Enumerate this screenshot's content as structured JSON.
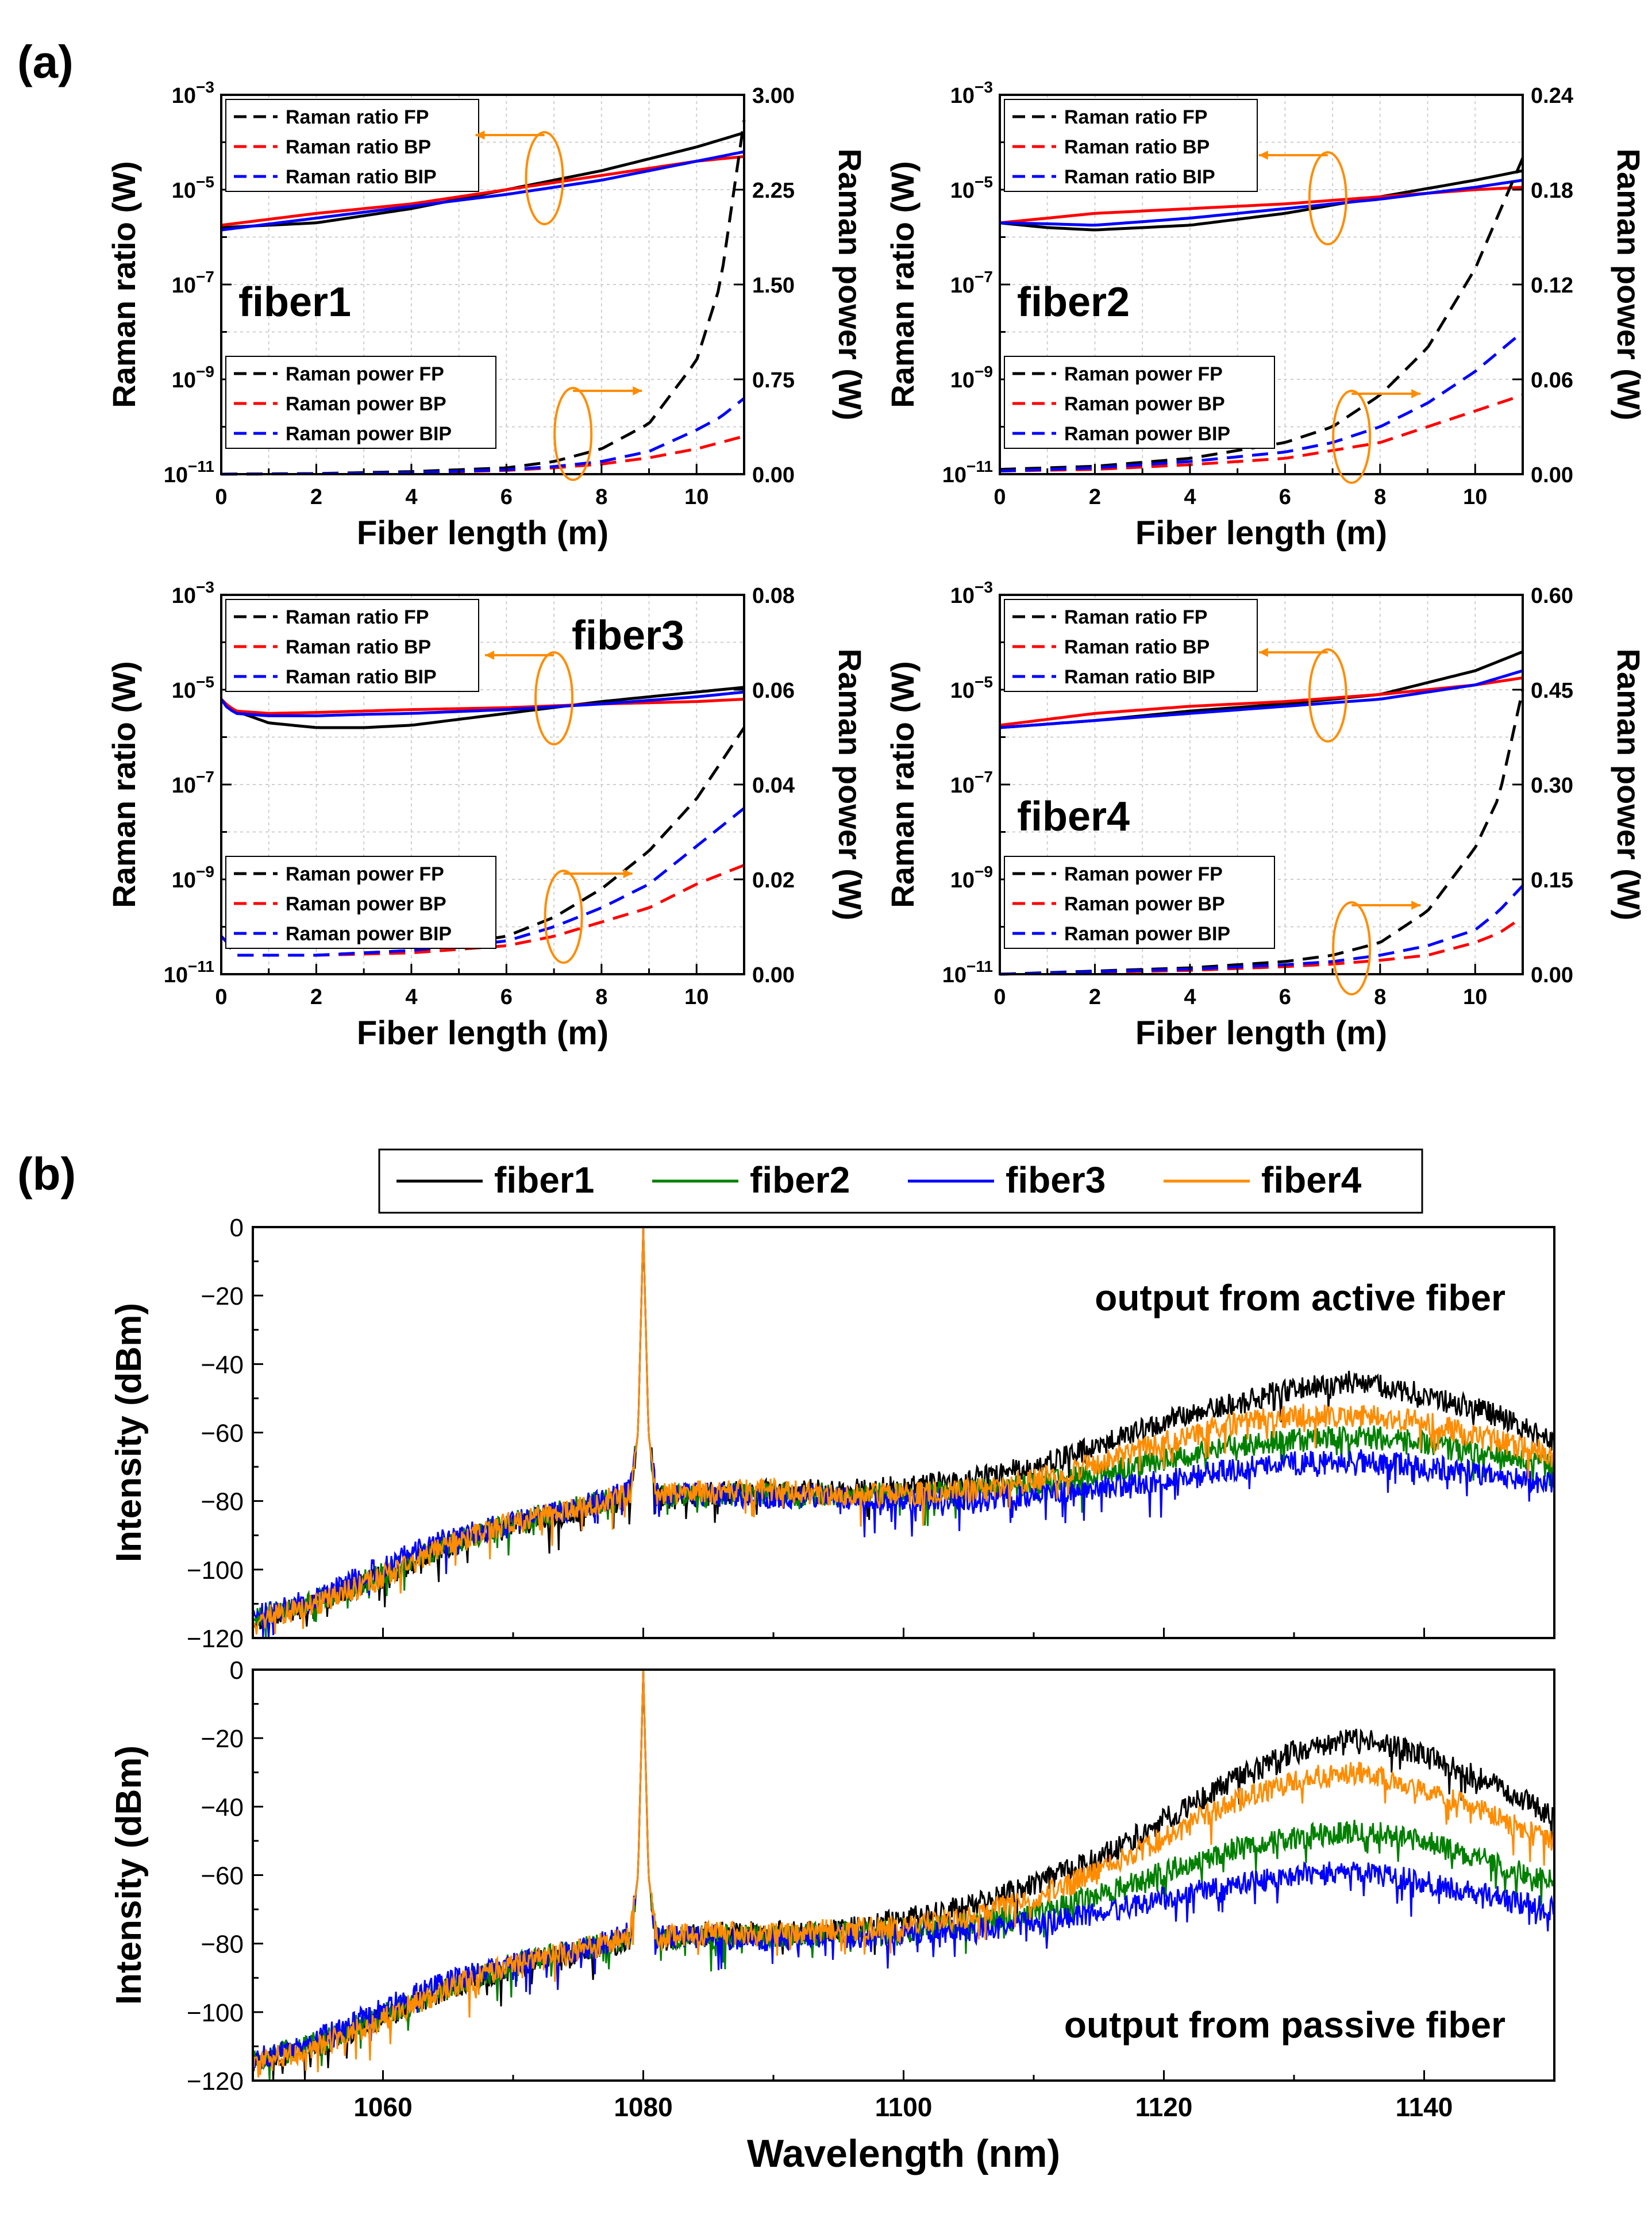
{
  "figure": {
    "part_a_label": "(a)",
    "part_b_label": "(b)"
  },
  "colors": {
    "black": "#000000",
    "red": "#ff0000",
    "blue": "#0000ff",
    "green": "#008000",
    "orange": "#ff8c00",
    "grid": "#cfcfcf"
  },
  "chart_data": [
    {
      "id": "fiber1",
      "type": "line",
      "panel_label": "fiber1",
      "xlabel": "Fiber length (m)",
      "ylabel_left": "Raman ratio (W)",
      "ylabel_right": "Raman power (W)",
      "xlim": [
        0,
        11
      ],
      "xticks": [
        "0",
        "2",
        "4",
        "6",
        "8",
        "10"
      ],
      "ylim_left_log10": [
        -11,
        -3
      ],
      "yticks_left_exp": [
        "-11",
        "-9",
        "-7",
        "-5",
        "-3"
      ],
      "ylim_right": [
        0,
        3.0
      ],
      "yticks_right": [
        "0.00",
        "0.75",
        "1.50",
        "2.25",
        "3.00"
      ],
      "legend_ratio": [
        "Raman ratio FP",
        "Raman ratio BP",
        "Raman ratio BIP"
      ],
      "legend_power": [
        "Raman power FP",
        "Raman power BP",
        "Raman power BIP"
      ],
      "ratio_log10": {
        "x": [
          0,
          2,
          4,
          6,
          8,
          10,
          11
        ],
        "FP": [
          -5.8,
          -5.7,
          -5.4,
          -5.0,
          -4.6,
          -4.1,
          -3.8
        ],
        "BP": [
          -5.75,
          -5.5,
          -5.3,
          -5.0,
          -4.7,
          -4.4,
          -4.3
        ],
        "BIP": [
          -5.85,
          -5.6,
          -5.35,
          -5.1,
          -4.8,
          -4.4,
          -4.2
        ]
      },
      "power": {
        "x": [
          0,
          2,
          4,
          6,
          7,
          8,
          9,
          10,
          10.5,
          11
        ],
        "FP": [
          0.0,
          0.005,
          0.02,
          0.05,
          0.1,
          0.2,
          0.4,
          0.9,
          1.5,
          2.8
        ],
        "BP": [
          0.0,
          0.003,
          0.01,
          0.03,
          0.05,
          0.08,
          0.13,
          0.2,
          0.25,
          0.3
        ],
        "BIP": [
          0.0,
          0.004,
          0.012,
          0.035,
          0.06,
          0.1,
          0.18,
          0.35,
          0.45,
          0.6
        ]
      }
    },
    {
      "id": "fiber2",
      "type": "line",
      "panel_label": "fiber2",
      "xlabel": "Fiber length (m)",
      "ylabel_left": "Raman ratio (W)",
      "ylabel_right": "Raman power (W)",
      "xlim": [
        0,
        11
      ],
      "xticks": [
        "0",
        "2",
        "4",
        "6",
        "8",
        "10"
      ],
      "ylim_left_log10": [
        -11,
        -3
      ],
      "yticks_left_exp": [
        "-11",
        "-9",
        "-7",
        "-5",
        "-3"
      ],
      "ylim_right": [
        0,
        0.24
      ],
      "yticks_right": [
        "0.00",
        "0.06",
        "0.12",
        "0.18",
        "0.24"
      ],
      "legend_ratio": [
        "Raman ratio FP",
        "Raman ratio BP",
        "Raman ratio BIP"
      ],
      "legend_power": [
        "Raman power FP",
        "Raman power BP",
        "Raman power BIP"
      ],
      "ratio_log10": {
        "x": [
          0,
          1,
          2,
          4,
          6,
          8,
          10,
          11
        ],
        "FP": [
          -5.7,
          -5.8,
          -5.85,
          -5.75,
          -5.5,
          -5.15,
          -4.8,
          -4.6
        ],
        "BP": [
          -5.7,
          -5.6,
          -5.5,
          -5.4,
          -5.3,
          -5.15,
          -5.0,
          -4.95
        ],
        "BIP": [
          -5.7,
          -5.72,
          -5.75,
          -5.6,
          -5.4,
          -5.2,
          -4.95,
          -4.8
        ]
      },
      "power": {
        "x": [
          0,
          2,
          4,
          6,
          7,
          8,
          9,
          10,
          11
        ],
        "FP": [
          0.003,
          0.005,
          0.01,
          0.02,
          0.03,
          0.05,
          0.08,
          0.13,
          0.2
        ],
        "BP": [
          0.002,
          0.003,
          0.006,
          0.01,
          0.015,
          0.02,
          0.03,
          0.04,
          0.05
        ],
        "BIP": [
          0.002,
          0.004,
          0.008,
          0.014,
          0.02,
          0.03,
          0.045,
          0.065,
          0.09
        ]
      }
    },
    {
      "id": "fiber3",
      "type": "line",
      "panel_label": "fiber3",
      "xlabel": "Fiber length (m)",
      "ylabel_left": "Raman ratio (W)",
      "ylabel_right": "Raman power (W)",
      "xlim": [
        0,
        11
      ],
      "xticks": [
        "0",
        "2",
        "4",
        "6",
        "8",
        "10"
      ],
      "ylim_left_log10": [
        -11,
        -3
      ],
      "yticks_left_exp": [
        "-11",
        "-9",
        "-7",
        "-5",
        "-3"
      ],
      "ylim_right": [
        0,
        0.08
      ],
      "yticks_right": [
        "0.00",
        "0.02",
        "0.04",
        "0.06",
        "0.08"
      ],
      "legend_ratio": [
        "Raman ratio FP",
        "Raman ratio BP",
        "Raman ratio BIP"
      ],
      "legend_power": [
        "Raman power FP",
        "Raman power BP",
        "Raman power BIP"
      ],
      "ratio_log10": {
        "x": [
          0,
          0.1,
          0.3,
          1,
          2,
          3,
          4,
          6,
          8,
          10,
          11
        ],
        "FP": [
          -5.2,
          -5.3,
          -5.45,
          -5.7,
          -5.8,
          -5.8,
          -5.75,
          -5.5,
          -5.25,
          -5.05,
          -4.95
        ],
        "BP": [
          -5.2,
          -5.3,
          -5.45,
          -5.5,
          -5.48,
          -5.45,
          -5.42,
          -5.38,
          -5.3,
          -5.25,
          -5.2
        ],
        "BIP": [
          -5.2,
          -5.35,
          -5.5,
          -5.55,
          -5.55,
          -5.52,
          -5.5,
          -5.42,
          -5.3,
          -5.15,
          -5.05
        ]
      },
      "power": {
        "x": [
          0,
          0.1,
          0.3,
          1,
          2,
          4,
          6,
          7,
          8,
          9,
          10,
          11
        ],
        "FP": [
          0.008,
          0.007,
          0.004,
          0.004,
          0.004,
          0.005,
          0.008,
          0.012,
          0.018,
          0.026,
          0.037,
          0.052
        ],
        "BP": [
          0.008,
          0.007,
          0.004,
          0.004,
          0.004,
          0.0045,
          0.006,
          0.008,
          0.011,
          0.014,
          0.019,
          0.023
        ],
        "BIP": [
          0.008,
          0.007,
          0.004,
          0.004,
          0.004,
          0.005,
          0.007,
          0.01,
          0.014,
          0.019,
          0.027,
          0.035
        ]
      }
    },
    {
      "id": "fiber4",
      "type": "line",
      "panel_label": "fiber4",
      "xlabel": "Fiber length (m)",
      "ylabel_left": "Raman ratio (W)",
      "ylabel_right": "Raman power (W)",
      "xlim": [
        0,
        11
      ],
      "xticks": [
        "0",
        "2",
        "4",
        "6",
        "8",
        "10"
      ],
      "ylim_left_log10": [
        -11,
        -3
      ],
      "yticks_left_exp": [
        "-11",
        "-9",
        "-7",
        "-5",
        "-3"
      ],
      "ylim_right": [
        0,
        0.6
      ],
      "yticks_right": [
        "0.00",
        "0.15",
        "0.30",
        "0.45",
        "0.60"
      ],
      "legend_ratio": [
        "Raman ratio FP",
        "Raman ratio BP",
        "Raman ratio BIP"
      ],
      "legend_power": [
        "Raman power FP",
        "Raman power BP",
        "Raman power BIP"
      ],
      "ratio_log10": {
        "x": [
          0,
          2,
          4,
          6,
          8,
          10,
          11
        ],
        "FP": [
          -5.8,
          -5.65,
          -5.45,
          -5.3,
          -5.1,
          -4.6,
          -4.2
        ],
        "BP": [
          -5.75,
          -5.5,
          -5.35,
          -5.25,
          -5.1,
          -4.9,
          -4.75
        ],
        "BIP": [
          -5.8,
          -5.65,
          -5.5,
          -5.35,
          -5.2,
          -4.9,
          -4.6
        ]
      },
      "power": {
        "x": [
          0,
          2,
          4,
          6,
          7,
          8,
          9,
          10,
          10.5,
          11
        ],
        "FP": [
          0.0,
          0.005,
          0.01,
          0.02,
          0.03,
          0.05,
          0.1,
          0.2,
          0.28,
          0.45
        ],
        "BP": [
          0.0,
          0.003,
          0.006,
          0.012,
          0.016,
          0.022,
          0.03,
          0.05,
          0.065,
          0.09
        ],
        "BIP": [
          0.0,
          0.004,
          0.008,
          0.015,
          0.02,
          0.03,
          0.045,
          0.07,
          0.1,
          0.14
        ]
      }
    },
    {
      "id": "spectra",
      "type": "line",
      "xlabel": "Wavelength (nm)",
      "ylabel": "Intensity (dBm)",
      "xlim": [
        1050,
        1150
      ],
      "xticks": [
        "1060",
        "1080",
        "1100",
        "1120",
        "1140"
      ],
      "ylim": [
        -120,
        0
      ],
      "yticks": [
        "0",
        "-20",
        "-40",
        "-60",
        "-80",
        "-100",
        "-120"
      ],
      "legend": [
        "fiber1",
        "fiber2",
        "fiber3",
        "fiber4"
      ],
      "panels": [
        {
          "annotation": "output from active fiber",
          "x": [
            1050,
            1055,
            1060,
            1065,
            1070,
            1075,
            1079,
            1079.6,
            1080,
            1080.4,
            1081,
            1085,
            1090,
            1095,
            1100,
            1105,
            1110,
            1115,
            1120,
            1125,
            1130,
            1135,
            1140,
            1145,
            1150
          ],
          "series": {
            "fiber1": [
              -115,
              -110,
              -102,
              -93,
              -87,
              -83,
              -79,
              -60,
              0,
              -60,
              -79,
              -78,
              -77,
              -77,
              -76,
              -74,
              -70,
              -64,
              -57,
              -52,
              -47,
              -45,
              -49,
              -54,
              -63
            ],
            "fiber2": [
              -114,
              -109,
              -101,
              -93,
              -86,
              -82,
              -78,
              -60,
              0,
              -60,
              -79,
              -78,
              -78,
              -78,
              -78,
              -77,
              -75,
              -72,
              -68,
              -64,
              -62,
              -61,
              -63,
              -67,
              -70
            ],
            "fiber3": [
              -114,
              -108,
              -99,
              -91,
              -86,
              -82,
              -77,
              -60,
              0,
              -60,
              -78,
              -78,
              -79,
              -79,
              -80,
              -79,
              -78,
              -76,
              -74,
              -71,
              -69,
              -68,
              -70,
              -72,
              -75
            ],
            "fiber4": [
              -115,
              -110,
              -102,
              -93,
              -86,
              -82,
              -78,
              -60,
              0,
              -60,
              -78,
              -77,
              -77,
              -78,
              -78,
              -77,
              -74,
              -69,
              -63,
              -58,
              -55,
              -55,
              -57,
              -62,
              -66
            ]
          }
        },
        {
          "annotation": "output from passive fiber",
          "x": [
            1050,
            1055,
            1060,
            1065,
            1070,
            1075,
            1079,
            1079.6,
            1080,
            1080.4,
            1081,
            1085,
            1090,
            1095,
            1100,
            1105,
            1110,
            1115,
            1120,
            1125,
            1130,
            1135,
            1140,
            1145,
            1150
          ],
          "series": {
            "fiber1": [
              -115,
              -110,
              -102,
              -93,
              -87,
              -83,
              -79,
              -60,
              0,
              -60,
              -79,
              -77,
              -77,
              -76,
              -73,
              -69,
              -63,
              -55,
              -44,
              -33,
              -24,
              -20,
              -25,
              -33,
              -43
            ],
            "fiber2": [
              -114,
              -109,
              -101,
              -93,
              -86,
              -82,
              -78,
              -60,
              0,
              -60,
              -79,
              -78,
              -78,
              -77,
              -76,
              -74,
              -71,
              -66,
              -59,
              -53,
              -49,
              -47,
              -50,
              -56,
              -62
            ],
            "fiber3": [
              -114,
              -108,
              -99,
              -91,
              -86,
              -82,
              -77,
              -60,
              0,
              -60,
              -78,
              -78,
              -79,
              -78,
              -77,
              -76,
              -74,
              -71,
              -67,
              -63,
              -60,
              -59,
              -62,
              -66,
              -70
            ],
            "fiber4": [
              -115,
              -110,
              -102,
              -93,
              -86,
              -82,
              -78,
              -60,
              0,
              -60,
              -78,
              -77,
              -77,
              -76,
              -75,
              -72,
              -67,
              -59,
              -49,
              -39,
              -32,
              -30,
              -35,
              -42,
              -51
            ]
          }
        }
      ]
    }
  ]
}
